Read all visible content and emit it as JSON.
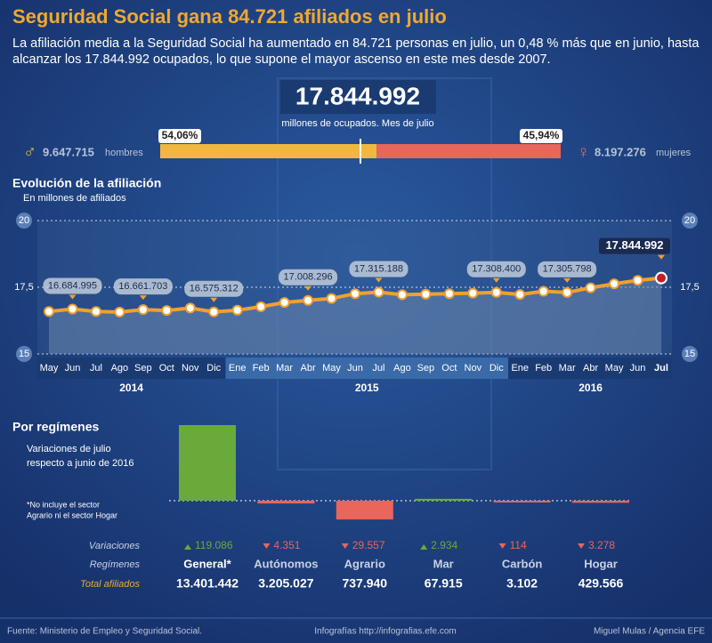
{
  "header": {
    "title": "Seguridad Social gana 84.721 afiliados en julio",
    "subtitle": [
      "La afiliación media a la Seguridad Social ha aumentado en 84.721 personas en julio, un 0,48 % más que en junio, hasta",
      "alcanzar los 17.844.992 ocupados, lo que supone el mayor ascenso en este mes desde 2007."
    ],
    "highlight": "17.844.992",
    "highlight_caption": "millones de ocupados. Mes de julio"
  },
  "gender": {
    "values": [
      54.06,
      45.94
    ],
    "value_labels": [
      "54,06%",
      "45,94%"
    ],
    "colors": [
      "#f0b840",
      "#e8665a"
    ],
    "men": {
      "count": "9.647.715",
      "label": "hombres"
    },
    "women": {
      "count": "8.197.276",
      "label": "mujeres"
    }
  },
  "chart_data": [
    {
      "type": "line",
      "title": "Evolución de la afiliación",
      "subtitle": "En millones de afiliados",
      "categories": [
        "May",
        "Jun",
        "Jul",
        "Ago",
        "Sep",
        "Oct",
        "Nov",
        "Dic",
        "Ene",
        "Feb",
        "Mar",
        "Abr",
        "May",
        "Jun",
        "Jul",
        "Ago",
        "Sep",
        "Oct",
        "Nov",
        "Dic",
        "Ene",
        "Feb",
        "Mar",
        "Abr",
        "May",
        "Jun",
        "Jul"
      ],
      "years": [
        {
          "label": "2014",
          "start": 0,
          "end": 7
        },
        {
          "label": "2015",
          "start": 8,
          "end": 19
        },
        {
          "label": "2016",
          "start": 20,
          "end": 26
        }
      ],
      "values": [
        16.59,
        16.684995,
        16.59,
        16.57,
        16.661703,
        16.63,
        16.72,
        16.575312,
        16.64,
        16.77,
        16.93,
        17.008296,
        17.08,
        17.26,
        17.315188,
        17.22,
        17.24,
        17.26,
        17.28,
        17.3084,
        17.23,
        17.35,
        17.305798,
        17.48,
        17.63,
        17.76,
        17.844992
      ],
      "value_labels": [
        null,
        "16.684.995",
        null,
        null,
        "16.661.703",
        null,
        null,
        "16.575.312",
        null,
        null,
        null,
        "17.008.296",
        null,
        null,
        "17.315.188",
        null,
        null,
        null,
        null,
        "17.308.400",
        null,
        null,
        "17.305.798",
        null,
        null,
        null,
        "17.844.992"
      ],
      "color": "#f0a030",
      "ylim": [
        15,
        20
      ],
      "yticks": [
        15,
        {
          "value": 17.5,
          "label": "17,5"
        },
        20
      ],
      "grid": true
    },
    {
      "type": "bar",
      "title": "Por regímenes",
      "subtitle": [
        "Variaciones de julio",
        "respecto a junio de 2016"
      ],
      "note": [
        "*No incluye el sector",
        "Agrario ni el sector Hogar"
      ],
      "categories": [
        "General*",
        "Autónomos",
        "Agrario",
        "Mar",
        "Carbón",
        "Hogar"
      ],
      "values": [
        119086,
        -4351,
        -29557,
        2934,
        -114,
        -3278
      ],
      "value_labels": [
        "119.086",
        "4.351",
        "29.557",
        "2.934",
        "114",
        "3.278"
      ],
      "colors": {
        "positive": "#6aaa3a",
        "negative": "#e8665a"
      },
      "row_labels": [
        "Variaciones",
        "Regímenes",
        "Total afiliados"
      ],
      "totals": [
        "13.401.442",
        "3.205.027",
        "737.940",
        "67.915",
        "3.102",
        "429.566"
      ]
    }
  ],
  "footer": {
    "source": "Fuente: Ministerio de Empleo y Seguridad Social.",
    "site": "Infografías http://infografias.efe.com",
    "credit": "Miguel Mulas /  Agencia EFE"
  }
}
